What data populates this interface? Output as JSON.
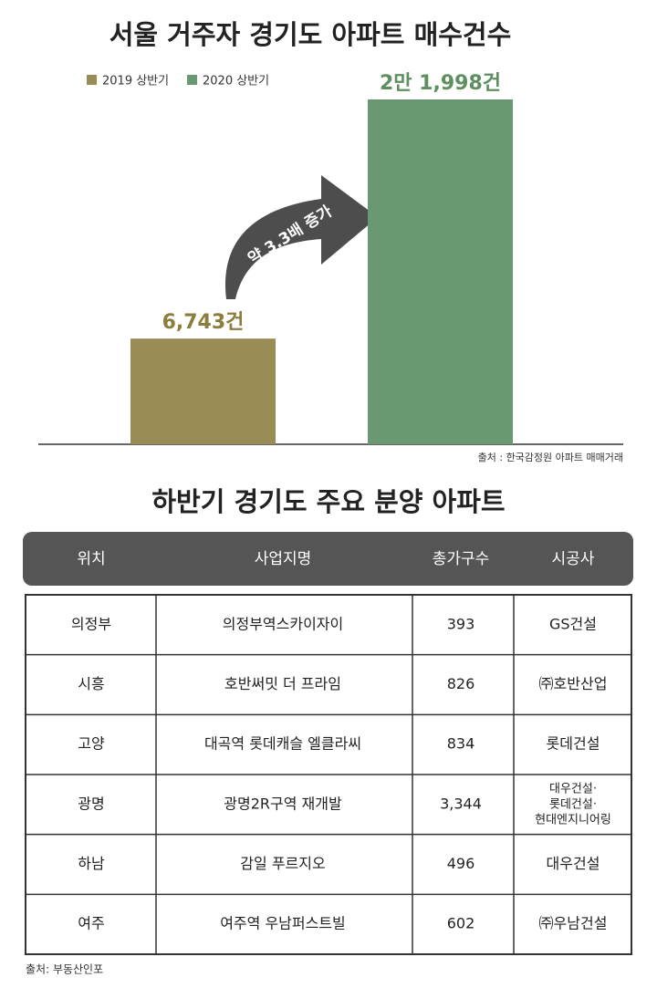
{
  "chart_data": {
    "type": "bar",
    "title": "서울 거주자 경기도 아파트 매수건수",
    "series": [
      {
        "name": "2019 상반기",
        "color": "#9a8c55",
        "values": [
          6743
        ],
        "value_labels": [
          "6,743건"
        ]
      },
      {
        "name": "2020 상반기",
        "color": "#6a9870",
        "values": [
          21998
        ],
        "value_labels": [
          "2만 1,998건"
        ]
      }
    ],
    "annotation": "약 3.3배 증가",
    "source": "출처 : 한국감정원 아파트 매매거래"
  },
  "table": {
    "title": "하반기 경기도 주요 분양 아파트",
    "header": [
      "위치",
      "사업지명",
      "총가구수",
      "시공사"
    ],
    "rows": [
      [
        "의정부",
        "의정부역스카이자이",
        "393",
        "GS건설"
      ],
      [
        "시흥",
        "호반써밋 더 프라임",
        "826",
        "㈜호반산업"
      ],
      [
        "고양",
        "대곡역 롯데캐슬 엘클라씨",
        "834",
        "롯데건설"
      ],
      [
        "광명",
        "광명2R구역  재개발",
        "3,344",
        [
          "대우건설·",
          "롯데건설·",
          "현대엔지니어링"
        ]
      ],
      [
        "하남",
        "감일 푸르지오",
        "496",
        "대우건설"
      ],
      [
        "여주",
        "여주역 우남퍼스트빌",
        "602",
        "㈜우남건설"
      ]
    ],
    "source": "출처: 부동산인포"
  }
}
